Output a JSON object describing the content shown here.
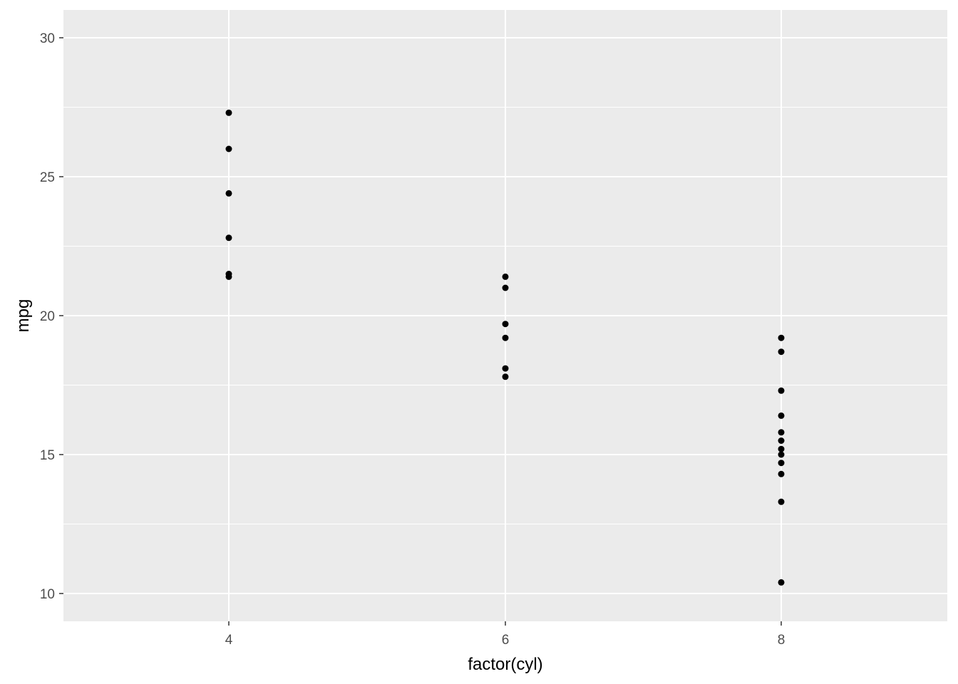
{
  "chart_data": {
    "type": "scatter",
    "title": "",
    "xlabel": "factor(cyl)",
    "ylabel": "mpg",
    "categories": [
      "4",
      "6",
      "8"
    ],
    "ylim": [
      9,
      31
    ],
    "y_ticks": [
      10,
      15,
      20,
      25,
      30
    ],
    "grid": true,
    "legend": "none",
    "colors": {
      "panel": "#EBEBEB",
      "grid": "#FFFFFF",
      "point": "#000000",
      "tick": "#333333"
    },
    "series": [
      {
        "category": "4",
        "values": [
          27.3,
          26.0,
          24.4,
          22.8,
          21.5,
          21.4
        ]
      },
      {
        "category": "6",
        "values": [
          21.4,
          21.0,
          19.7,
          19.2,
          18.1,
          17.8
        ]
      },
      {
        "category": "8",
        "values": [
          19.2,
          18.7,
          17.3,
          16.4,
          15.8,
          15.5,
          15.2,
          15.0,
          14.7,
          14.3,
          13.3,
          10.4
        ]
      }
    ]
  }
}
